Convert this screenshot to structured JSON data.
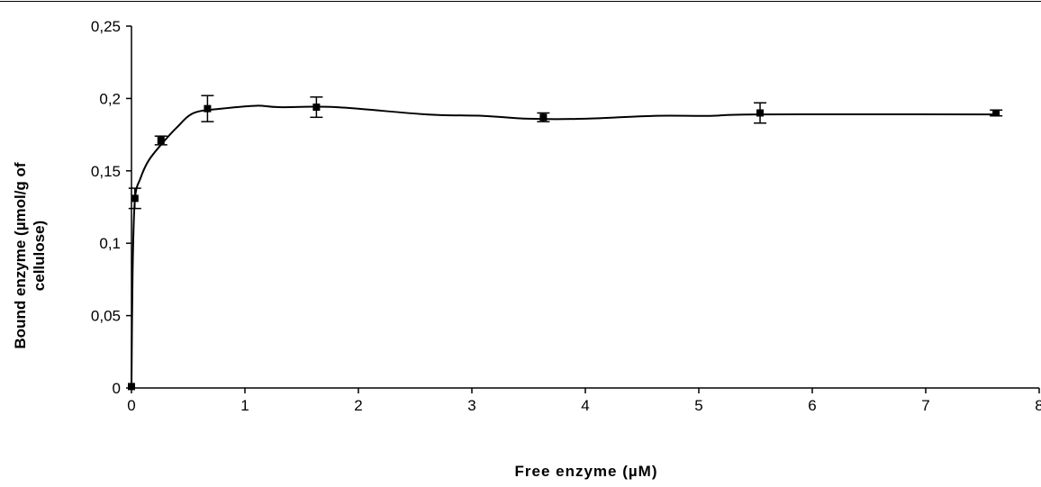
{
  "chart_data": {
    "type": "scatter",
    "title": "",
    "xlabel": "Free enzyme (µM)",
    "ylabel_lines": [
      "Bound enzyme (µmol/g of",
      "cellulose)"
    ],
    "xlim": [
      0,
      8
    ],
    "ylim": [
      0,
      0.25
    ],
    "x_ticks": [
      "0",
      "1",
      "2",
      "3",
      "4",
      "5",
      "6",
      "7",
      "8"
    ],
    "y_ticks": [
      "0",
      "0,05",
      "0,1",
      "0,15",
      "0,2",
      "0,25"
    ],
    "grid": false,
    "legend": "none",
    "series": [
      {
        "points": [
          {
            "x": 0.0,
            "y": 0.001,
            "err": 0
          },
          {
            "x": 0.03,
            "y": 0.131,
            "err": 0.007
          },
          {
            "x": 0.26,
            "y": 0.171,
            "err": 0.003
          },
          {
            "x": 0.67,
            "y": 0.193,
            "err": 0.009
          },
          {
            "x": 1.63,
            "y": 0.194,
            "err": 0.007
          },
          {
            "x": 3.63,
            "y": 0.187,
            "err": 0.003
          },
          {
            "x": 5.54,
            "y": 0.19,
            "err": 0.007
          },
          {
            "x": 7.62,
            "y": 0.19,
            "err": 0.002
          }
        ],
        "fit_curve": [
          [
            0.0,
            0.001
          ],
          [
            0.01,
            0.08
          ],
          [
            0.03,
            0.13
          ],
          [
            0.08,
            0.145
          ],
          [
            0.15,
            0.157
          ],
          [
            0.26,
            0.168
          ],
          [
            0.4,
            0.18
          ],
          [
            0.55,
            0.19
          ],
          [
            0.8,
            0.193
          ],
          [
            1.1,
            0.195
          ],
          [
            1.3,
            0.194
          ],
          [
            1.8,
            0.194
          ],
          [
            2.6,
            0.189
          ],
          [
            3.1,
            0.188
          ],
          [
            3.5,
            0.186
          ],
          [
            4.0,
            0.186
          ],
          [
            4.6,
            0.188
          ],
          [
            5.1,
            0.188
          ],
          [
            5.54,
            0.189
          ],
          [
            7.62,
            0.189
          ]
        ],
        "color": "#000000"
      }
    ]
  }
}
